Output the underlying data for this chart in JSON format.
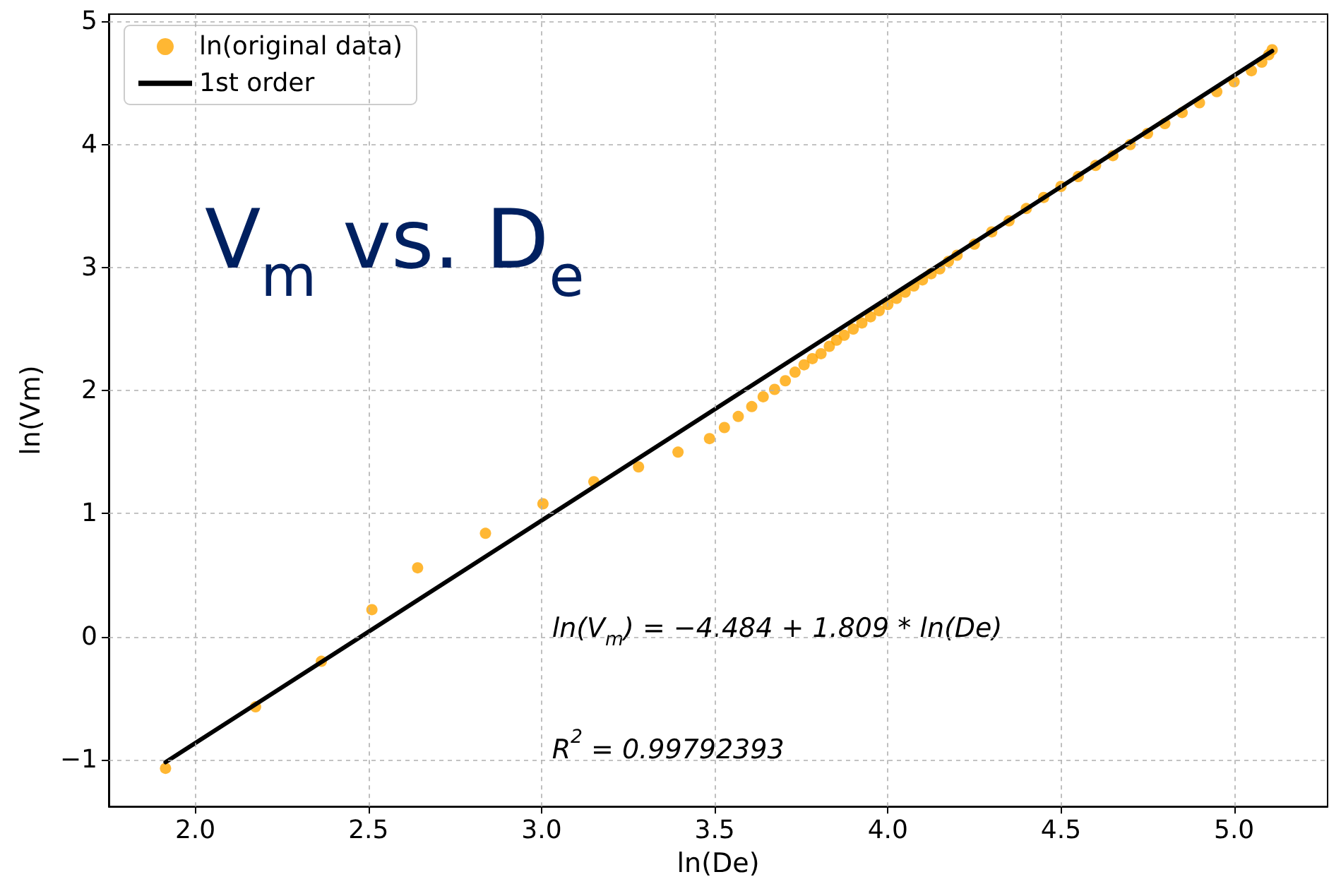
{
  "chart_data": {
    "type": "scatter",
    "title": "V$_{m}$ vs. D$_{e}$",
    "xlabel": "ln(De)",
    "ylabel": "ln(Vm)",
    "xlim": [
      1.75,
      5.27
    ],
    "ylim": [
      -1.38,
      5.06
    ],
    "xticks": [
      {
        "value": 2,
        "label": "2.0"
      },
      {
        "value": 2.5,
        "label": "2.5"
      },
      {
        "value": 3,
        "label": "3.0"
      },
      {
        "value": 3.5,
        "label": "3.5"
      },
      {
        "value": 4,
        "label": "4.0"
      },
      {
        "value": 4.5,
        "label": "4.5"
      },
      {
        "value": 5,
        "label": "5.0"
      }
    ],
    "yticks": [
      {
        "value": -1,
        "label": "−1"
      },
      0,
      1,
      2,
      3,
      4,
      5
    ],
    "grid": true,
    "legend": "top left",
    "annotations": [
      "ln(V$_{m}$) = −4.484 + 1.809 * ln(De)",
      "R$^{2}$ = 0.99792393"
    ],
    "series": [
      {
        "name": "ln(original data)",
        "marker": "circle",
        "color": "#ffa500",
        "x": [
          1.914,
          2.174,
          2.364,
          2.51,
          2.642,
          2.838,
          3.004,
          3.151,
          3.28,
          3.394,
          3.485,
          3.528,
          3.568,
          3.607,
          3.64,
          3.673,
          3.704,
          3.732,
          3.758,
          3.782,
          3.807,
          3.831,
          3.852,
          3.874,
          3.9,
          3.925,
          3.95,
          3.975,
          4.0,
          4.025,
          4.05,
          4.075,
          4.1,
          4.125,
          4.15,
          4.175,
          4.2,
          4.25,
          4.3,
          4.35,
          4.4,
          4.45,
          4.5,
          4.55,
          4.6,
          4.65,
          4.7,
          4.75,
          4.8,
          4.85,
          4.9,
          4.95,
          5.0,
          5.05,
          5.08,
          5.1,
          5.11
        ],
        "values": [
          -1.07,
          -0.57,
          -0.2,
          0.22,
          0.56,
          0.84,
          1.08,
          1.26,
          1.38,
          1.5,
          1.61,
          1.7,
          1.79,
          1.87,
          1.95,
          2.01,
          2.08,
          2.15,
          2.21,
          2.26,
          2.3,
          2.36,
          2.41,
          2.45,
          2.5,
          2.55,
          2.6,
          2.65,
          2.7,
          2.75,
          2.8,
          2.85,
          2.9,
          2.95,
          2.99,
          3.05,
          3.1,
          3.19,
          3.29,
          3.38,
          3.48,
          3.57,
          3.66,
          3.74,
          3.83,
          3.91,
          4.0,
          4.09,
          4.17,
          4.26,
          4.34,
          4.43,
          4.51,
          4.6,
          4.67,
          4.73,
          4.77
        ]
      },
      {
        "name": "1st order",
        "type": "line",
        "marker": "none",
        "color": "#000000",
        "line_style": "solid",
        "x": [
          1.914,
          5.11
        ],
        "values": [
          -1.02,
          4.76
        ]
      }
    ]
  }
}
